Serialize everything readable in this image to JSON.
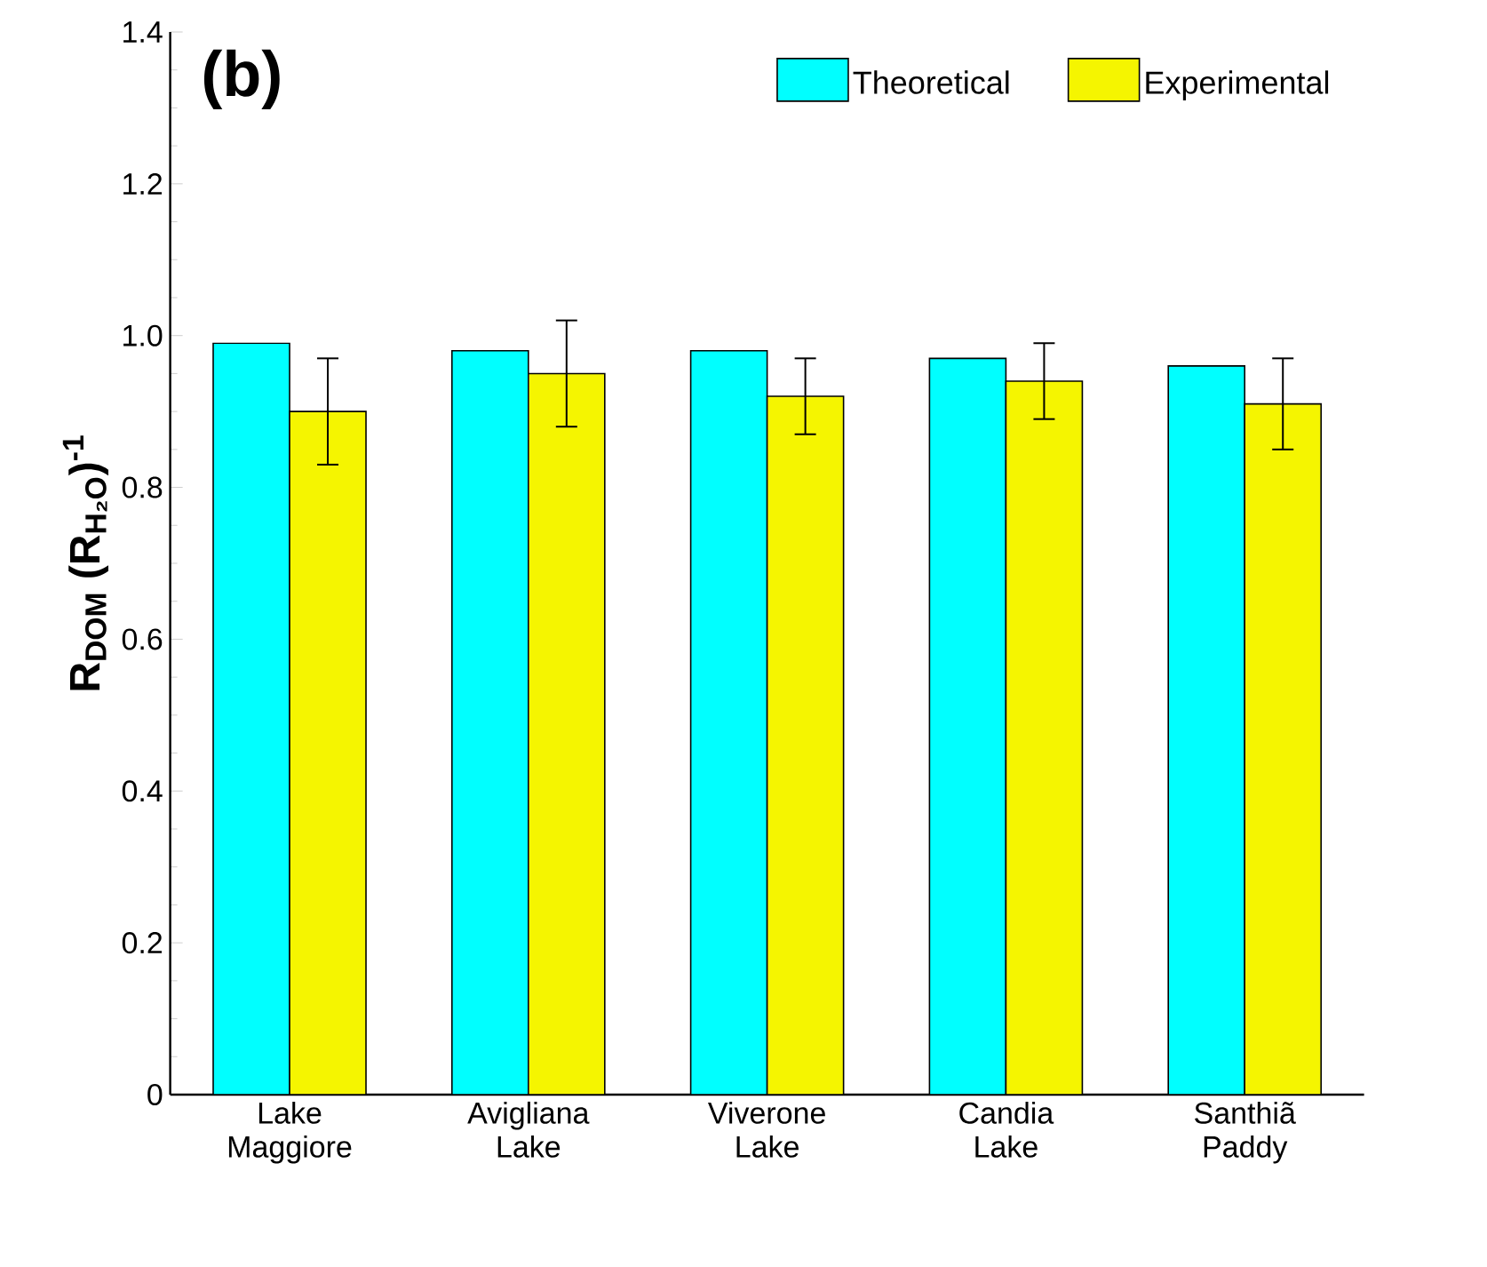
{
  "chart_data": {
    "type": "bar",
    "ylabel": "R$_{DOM}$  (R$_{H₂O}$)$^{-1}$",
    "annotations": [
      "(b)"
    ],
    "categories": [
      "Lake Maggiore",
      "Avigliana Lake",
      "Viverone Lake",
      "Candia Lake",
      "Santhiã Paddy"
    ],
    "series": [
      {
        "name": "Theoretical",
        "color": "#00ffff",
        "values": [
          0.99,
          0.98,
          0.98,
          0.97,
          0.96
        ]
      },
      {
        "name": "Experimental",
        "color": "#f5f500",
        "values": [
          0.9,
          0.95,
          0.92,
          0.94,
          0.91
        ],
        "errors": [
          0.07,
          0.07,
          0.05,
          0.05,
          0.06
        ]
      }
    ],
    "ylim": [
      0,
      1.4
    ],
    "yticks": [
      {
        "value": 0,
        "label": "0"
      },
      0.2,
      0.4,
      0.6,
      0.8,
      {
        "value": 1.0,
        "label": "1.0"
      },
      1.2,
      1.4
    ],
    "legend": "top right",
    "grid": false
  }
}
